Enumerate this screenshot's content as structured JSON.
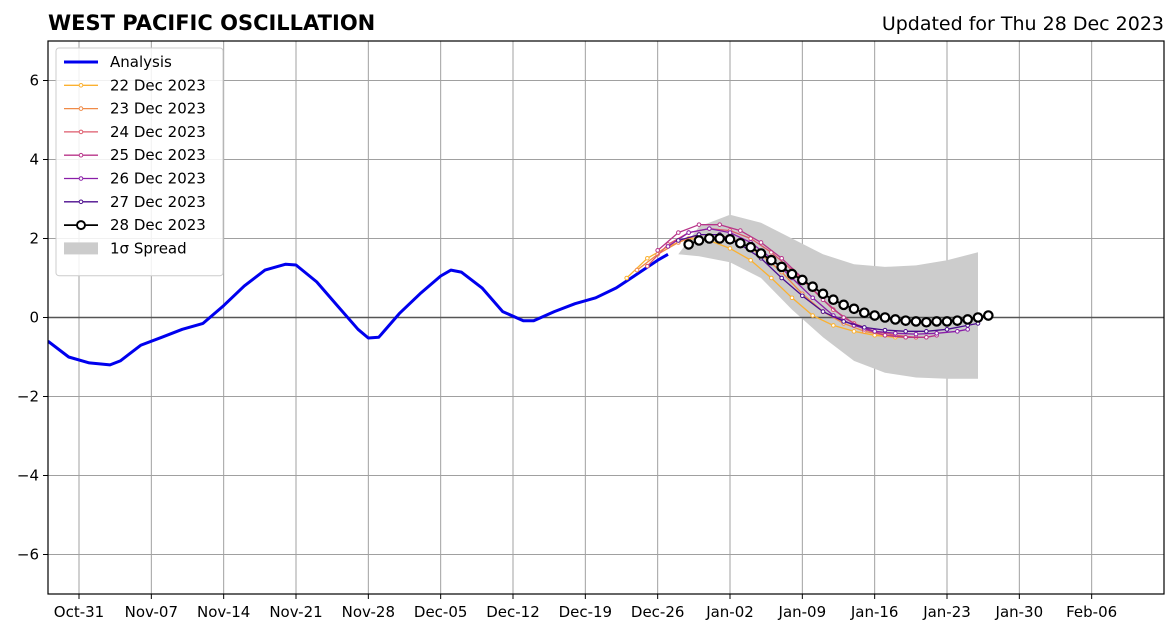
{
  "chart_data": {
    "type": "line",
    "title": "WEST PACIFIC OSCILLATION",
    "subtitle": "Updated for Thu 28 Dec 2023",
    "xlabel": "",
    "ylabel": "",
    "x_range": [
      "2023-10-28",
      "2024-02-13"
    ],
    "ylim": [
      -7,
      7
    ],
    "x_ticks": [
      {
        "date": "2023-10-31",
        "label": "Oct-31"
      },
      {
        "date": "2023-11-07",
        "label": "Nov-07"
      },
      {
        "date": "2023-11-14",
        "label": "Nov-14"
      },
      {
        "date": "2023-11-21",
        "label": "Nov-21"
      },
      {
        "date": "2023-11-28",
        "label": "Nov-28"
      },
      {
        "date": "2023-12-05",
        "label": "Dec-05"
      },
      {
        "date": "2023-12-12",
        "label": "Dec-12"
      },
      {
        "date": "2023-12-19",
        "label": "Dec-19"
      },
      {
        "date": "2023-12-26",
        "label": "Dec-26"
      },
      {
        "date": "2024-01-02",
        "label": "Jan-02"
      },
      {
        "date": "2024-01-09",
        "label": "Jan-09"
      },
      {
        "date": "2024-01-16",
        "label": "Jan-16"
      },
      {
        "date": "2024-01-23",
        "label": "Jan-23"
      },
      {
        "date": "2024-01-30",
        "label": "Jan-30"
      },
      {
        "date": "2024-02-06",
        "label": "Feb-06"
      }
    ],
    "y_ticks": [
      {
        "value": 6,
        "label": "6"
      },
      {
        "value": 4,
        "label": "4"
      },
      {
        "value": 2,
        "label": "2"
      },
      {
        "value": 0,
        "label": "0"
      },
      {
        "value": -2,
        "label": "−2"
      },
      {
        "value": -4,
        "label": "−4"
      },
      {
        "value": -6,
        "label": "−6"
      }
    ],
    "grid": true,
    "legend": "top-left",
    "spread": {
      "name": "1σ Spread",
      "color": "#cccccc",
      "x": [
        "2023-12-28",
        "2023-12-30",
        "2024-01-02",
        "2024-01-05",
        "2024-01-08",
        "2024-01-11",
        "2024-01-14",
        "2024-01-17",
        "2024-01-20",
        "2024-01-23",
        "2024-01-26"
      ],
      "upper": [
        1.6,
        2.3,
        2.6,
        2.4,
        2.0,
        1.6,
        1.35,
        1.28,
        1.32,
        1.45,
        1.65
      ],
      "lower": [
        1.6,
        1.55,
        1.4,
        1.0,
        0.2,
        -0.5,
        -1.1,
        -1.4,
        -1.52,
        -1.55,
        -1.55
      ]
    },
    "series": [
      {
        "name": "Analysis",
        "color": "#0000ee",
        "x": [
          "2023-10-28",
          "2023-10-30",
          "2023-11-01",
          "2023-11-03",
          "2023-11-04",
          "2023-11-06",
          "2023-11-08",
          "2023-11-10",
          "2023-11-12",
          "2023-11-14",
          "2023-11-16",
          "2023-11-18",
          "2023-11-20",
          "2023-11-21",
          "2023-11-23",
          "2023-11-25",
          "2023-11-27",
          "2023-11-28",
          "2023-11-29",
          "2023-12-01",
          "2023-12-03",
          "2023-12-05",
          "2023-12-06",
          "2023-12-07",
          "2023-12-09",
          "2023-12-11",
          "2023-12-13",
          "2023-12-14",
          "2023-12-16",
          "2023-12-18",
          "2023-12-20",
          "2023-12-22",
          "2023-12-24",
          "2023-12-26",
          "2023-12-27"
        ],
        "values": [
          -0.6,
          -1.0,
          -1.15,
          -1.2,
          -1.1,
          -0.7,
          -0.5,
          -0.3,
          -0.15,
          0.3,
          0.8,
          1.2,
          1.35,
          1.33,
          0.9,
          0.3,
          -0.3,
          -0.52,
          -0.5,
          0.1,
          0.6,
          1.05,
          1.2,
          1.15,
          0.75,
          0.15,
          -0.08,
          -0.08,
          0.15,
          0.35,
          0.5,
          0.75,
          1.1,
          1.45,
          1.6
        ]
      },
      {
        "name": "22 Dec 2023",
        "color": "#fbb130",
        "x": [
          "2023-12-23",
          "2023-12-25",
          "2023-12-27",
          "2023-12-29",
          "2023-12-31",
          "2024-01-02",
          "2024-01-04",
          "2024-01-06",
          "2024-01-08",
          "2024-01-10",
          "2024-01-12",
          "2024-01-14",
          "2024-01-16",
          "2024-01-18",
          "2024-01-19"
        ],
        "values": [
          1.0,
          1.5,
          1.8,
          2.0,
          1.95,
          1.75,
          1.45,
          1.0,
          0.5,
          0.05,
          -0.2,
          -0.35,
          -0.45,
          -0.5,
          -0.5
        ]
      },
      {
        "name": "23 Dec 2023",
        "color": "#f08a47",
        "x": [
          "2023-12-24",
          "2023-12-26",
          "2023-12-28",
          "2023-12-30",
          "2024-01-01",
          "2024-01-03",
          "2024-01-05",
          "2024-01-07",
          "2024-01-09",
          "2024-01-11",
          "2024-01-13",
          "2024-01-15",
          "2024-01-17",
          "2024-01-19",
          "2024-01-20"
        ],
        "values": [
          1.2,
          1.6,
          1.9,
          2.1,
          2.1,
          1.9,
          1.6,
          1.15,
          0.6,
          0.15,
          -0.15,
          -0.35,
          -0.45,
          -0.5,
          -0.5
        ]
      },
      {
        "name": "24 Dec 2023",
        "color": "#dd5a6b",
        "x": [
          "2023-12-25",
          "2023-12-27",
          "2023-12-29",
          "2023-12-31",
          "2024-01-02",
          "2024-01-04",
          "2024-01-06",
          "2024-01-08",
          "2024-01-10",
          "2024-01-12",
          "2024-01-14",
          "2024-01-16",
          "2024-01-18",
          "2024-01-20",
          "2024-01-21"
        ],
        "values": [
          1.3,
          1.85,
          2.15,
          2.25,
          2.2,
          2.0,
          1.65,
          1.2,
          0.7,
          0.2,
          -0.15,
          -0.35,
          -0.45,
          -0.5,
          -0.5
        ]
      },
      {
        "name": "25 Dec 2023",
        "color": "#b8348a",
        "x": [
          "2023-12-26",
          "2023-12-28",
          "2023-12-30",
          "2024-01-01",
          "2024-01-03",
          "2024-01-05",
          "2024-01-07",
          "2024-01-09",
          "2024-01-11",
          "2024-01-13",
          "2024-01-15",
          "2024-01-17",
          "2024-01-19",
          "2024-01-21",
          "2024-01-22"
        ],
        "values": [
          1.7,
          2.15,
          2.35,
          2.35,
          2.2,
          1.9,
          1.5,
          1.0,
          0.45,
          0.0,
          -0.3,
          -0.45,
          -0.5,
          -0.5,
          -0.45
        ]
      },
      {
        "name": "26 Dec 2023",
        "color": "#8a1ea8",
        "x": [
          "2023-12-27",
          "2023-12-29",
          "2023-12-31",
          "2024-01-02",
          "2024-01-04",
          "2024-01-06",
          "2024-01-08",
          "2024-01-10",
          "2024-01-12",
          "2024-01-14",
          "2024-01-16",
          "2024-01-18",
          "2024-01-20",
          "2024-01-22",
          "2024-01-24",
          "2024-01-25"
        ],
        "values": [
          1.8,
          2.15,
          2.25,
          2.15,
          1.9,
          1.5,
          1.0,
          0.5,
          0.05,
          -0.2,
          -0.35,
          -0.4,
          -0.42,
          -0.4,
          -0.35,
          -0.3
        ]
      },
      {
        "name": "27 Dec 2023",
        "color": "#4b0c8e",
        "x": [
          "2023-12-28",
          "2023-12-30",
          "2024-01-01",
          "2024-01-03",
          "2024-01-05",
          "2024-01-07",
          "2024-01-09",
          "2024-01-11",
          "2024-01-13",
          "2024-01-15",
          "2024-01-17",
          "2024-01-19",
          "2024-01-21",
          "2024-01-23",
          "2024-01-25",
          "2024-01-26"
        ],
        "values": [
          1.95,
          2.1,
          2.1,
          1.85,
          1.5,
          1.0,
          0.55,
          0.15,
          -0.1,
          -0.25,
          -0.32,
          -0.35,
          -0.35,
          -0.3,
          -0.2,
          -0.15
        ]
      },
      {
        "name": "28 Dec 2023",
        "color": "#000000",
        "x": [
          "2023-12-29",
          "2023-12-30",
          "2023-12-31",
          "2024-01-01",
          "2024-01-02",
          "2024-01-03",
          "2024-01-04",
          "2024-01-05",
          "2024-01-06",
          "2024-01-07",
          "2024-01-08",
          "2024-01-09",
          "2024-01-10",
          "2024-01-11",
          "2024-01-12",
          "2024-01-13",
          "2024-01-14",
          "2024-01-15",
          "2024-01-16",
          "2024-01-17",
          "2024-01-18",
          "2024-01-19",
          "2024-01-20",
          "2024-01-21",
          "2024-01-22",
          "2024-01-23",
          "2024-01-24",
          "2024-01-25",
          "2024-01-26",
          "2024-01-27"
        ],
        "values": [
          1.85,
          1.95,
          2.0,
          2.0,
          1.98,
          1.88,
          1.78,
          1.62,
          1.45,
          1.28,
          1.1,
          0.95,
          0.78,
          0.6,
          0.45,
          0.32,
          0.22,
          0.12,
          0.05,
          0.0,
          -0.05,
          -0.08,
          -0.1,
          -0.12,
          -0.1,
          -0.1,
          -0.08,
          -0.05,
          0.0,
          0.05
        ]
      }
    ]
  }
}
